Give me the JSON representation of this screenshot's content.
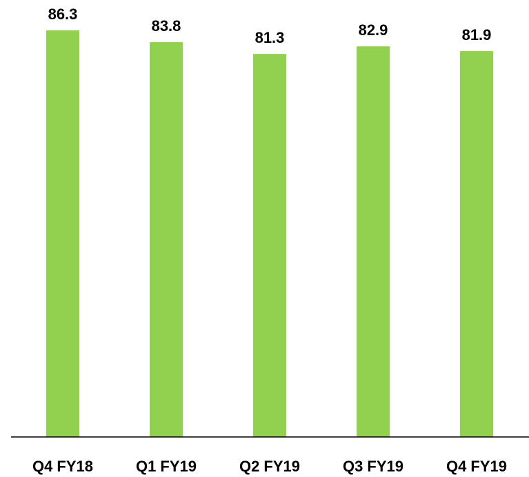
{
  "chart_data": {
    "type": "bar",
    "title": "",
    "xlabel": "",
    "ylabel": "",
    "categories": [
      "Q4 FY18",
      "Q1 FY19",
      "Q2 FY19",
      "Q3 FY19",
      "Q4 FY19"
    ],
    "values": [
      86.3,
      83.8,
      81.3,
      82.9,
      81.9
    ],
    "value_labels": [
      "86.3",
      "83.8",
      "81.3",
      "82.9",
      "81.9"
    ],
    "ylim": [
      0,
      86.3
    ],
    "grid": false,
    "legend": "none",
    "colors": {
      "bar": "#92D050",
      "axis": "#000000",
      "text": "#000000"
    }
  }
}
